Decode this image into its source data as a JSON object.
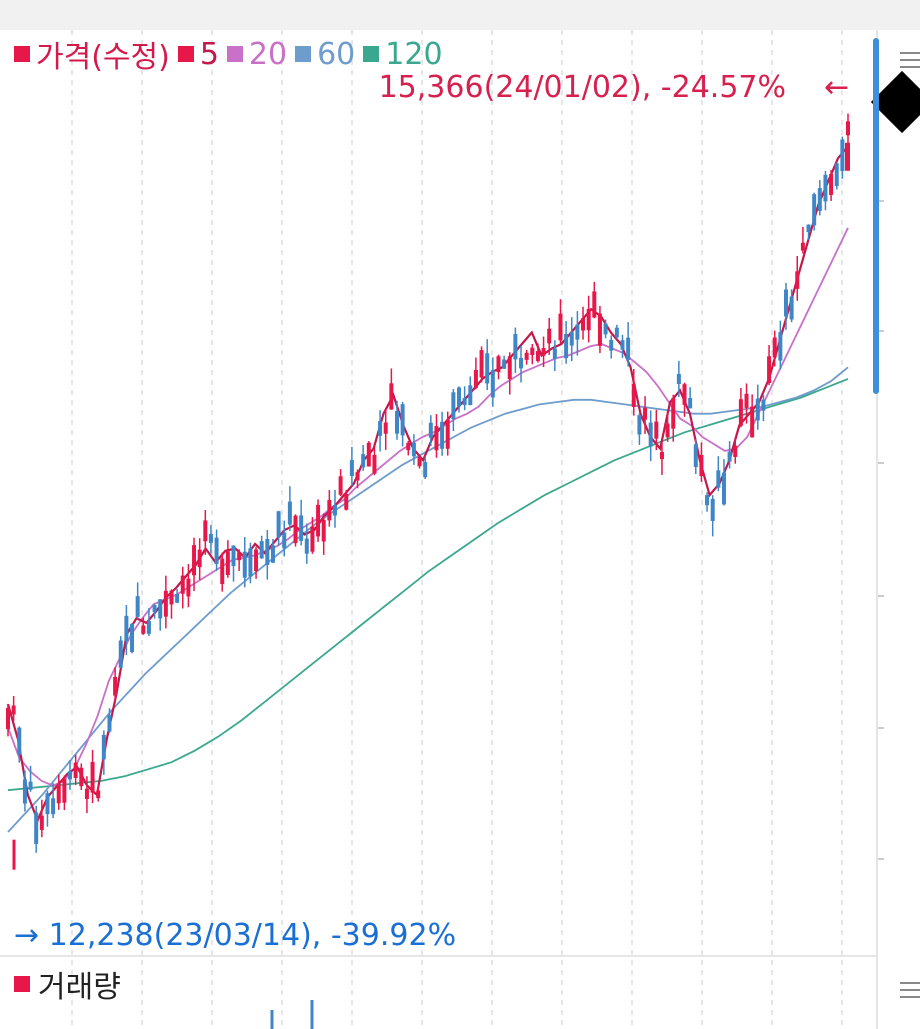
{
  "legend": {
    "price_label": "가격(수정)",
    "ma5_label": "5",
    "ma20_label": "20",
    "ma60_label": "60",
    "ma120_label": "120"
  },
  "annotations": {
    "high_label": "15,366(24/01/02), -24.57%",
    "high_arrow": "←",
    "low_label": "→ 12,238(23/03/14), -39.92%"
  },
  "volume_panel": {
    "title": "거래량"
  },
  "colors": {
    "up": "#e8174a",
    "down": "#3f86c6",
    "ma5": "#c2184b",
    "ma20": "#c970c8",
    "ma60": "#6d9ccd",
    "ma120": "#3aa88e",
    "high_text": "#d6204f",
    "low_text": "#1a6fd4"
  },
  "chart_data": {
    "type": "line",
    "xlabel": "",
    "ylabel": "",
    "ylim": [
      12000,
      15550
    ],
    "x_range": [
      "23/03/14",
      "24/01/02"
    ],
    "high": {
      "value": 15366,
      "date": "24/01/02",
      "pct": -24.57
    },
    "low": {
      "value": 12238,
      "date": "23/03/14",
      "pct": -39.92
    },
    "series": [
      {
        "name": "5",
        "values": [
          12950,
          12800,
          12560,
          12450,
          12550,
          12600,
          12650,
          12680,
          12600,
          12560,
          12800,
          13000,
          13250,
          13320,
          13300,
          13350,
          13410,
          13450,
          13500,
          13550,
          13620,
          13560,
          13610,
          13620,
          13580,
          13640,
          13600,
          13650,
          13700,
          13720,
          13680,
          13700,
          13760,
          13800,
          13850,
          13900,
          14000,
          14050,
          14200,
          14280,
          14150,
          14050,
          14000,
          14100,
          14150,
          14200,
          14250,
          14300,
          14350,
          14380,
          14400,
          14450,
          14500,
          14550,
          14450,
          14480,
          14500,
          14550,
          14600,
          14650,
          14620,
          14550,
          14500,
          14400,
          14200,
          14100,
          14050,
          14250,
          14300,
          14200,
          14000,
          13850,
          13900,
          14000,
          14150,
          14200,
          14250,
          14350,
          14500,
          14650,
          14800,
          14950,
          15100,
          15200,
          15300,
          15350
        ]
      },
      {
        "name": "20",
        "values": [
          12850,
          12720,
          12660,
          12620,
          12600,
          12620,
          12680,
          12780,
          12900,
          13050,
          13150,
          13250,
          13320,
          13380,
          13400,
          13420,
          13450,
          13480,
          13510,
          13540,
          13570,
          13580,
          13590,
          13610,
          13630,
          13660,
          13700,
          13730,
          13760,
          13800,
          13830,
          13880,
          13920,
          13960,
          14000,
          14040,
          14070,
          14100,
          14120,
          14150,
          14180,
          14200,
          14230,
          14280,
          14320,
          14350,
          14380,
          14400,
          14420,
          14440,
          14450,
          14470,
          14490,
          14500,
          14480,
          14460,
          14420,
          14380,
          14320,
          14250,
          14180,
          14150,
          14100,
          14070,
          14040,
          14050,
          14100,
          14200,
          14300,
          14400,
          14500,
          14600,
          14700,
          14800,
          14900,
          15000
        ]
      },
      {
        "name": "60",
        "values": [
          12400,
          12480,
          12560,
          12650,
          12740,
          12830,
          12920,
          13000,
          13080,
          13150,
          13220,
          13290,
          13360,
          13430,
          13490,
          13550,
          13610,
          13670,
          13730,
          13780,
          13830,
          13880,
          13930,
          13980,
          14020,
          14060,
          14100,
          14140,
          14170,
          14200,
          14220,
          14240,
          14250,
          14260,
          14260,
          14250,
          14240,
          14230,
          14220,
          14210,
          14200,
          14200,
          14210,
          14220,
          14230,
          14250,
          14270,
          14300,
          14340,
          14400
        ]
      },
      {
        "name": "120",
        "values": [
          12580,
          12590,
          12600,
          12610,
          12620,
          12640,
          12670,
          12700,
          12750,
          12810,
          12880,
          12960,
          13040,
          13120,
          13200,
          13280,
          13360,
          13440,
          13520,
          13590,
          13660,
          13730,
          13790,
          13850,
          13900,
          13950,
          14000,
          14040,
          14080,
          14120,
          14150,
          14180,
          14210,
          14240,
          14270,
          14310,
          14350
        ]
      }
    ]
  }
}
